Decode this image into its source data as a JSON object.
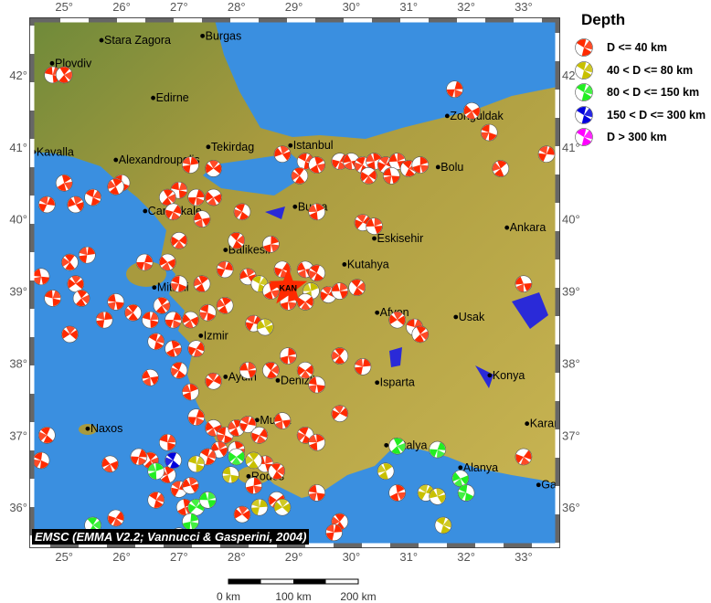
{
  "legend": {
    "title": "Depth",
    "items": [
      {
        "label": "D <= 40 km",
        "color": "#ff2a00"
      },
      {
        "label": "40 < D <= 80 km",
        "color": "#c8c000"
      },
      {
        "label": "80 < D <= 150 km",
        "color": "#22ee22"
      },
      {
        "label": "150 < D <= 300 km",
        "color": "#0000dd"
      },
      {
        "label": "D > 300 km",
        "color": "#ff00ff"
      }
    ]
  },
  "credit": "EMSC (EMMA V2.2; Vannucci & Gasperini, 2004)",
  "scale_bar": {
    "labels": [
      "0 km",
      "100 km",
      "200 km"
    ]
  },
  "axes": {
    "lon_ticks": [
      "25°",
      "26°",
      "27°",
      "28°",
      "29°",
      "30°",
      "31°",
      "32°",
      "33°"
    ],
    "lat_ticks": [
      "36°",
      "37°",
      "38°",
      "39°",
      "40°",
      "41°",
      "42°"
    ],
    "lon_range": [
      24.44,
      33.59
    ],
    "lat_range": [
      35.47,
      42.76
    ]
  },
  "colors": {
    "sea": "#3a8fe0",
    "land": "#b8a640",
    "lake": "#2a2ad8",
    "epicenter": "#ff2a00"
  },
  "epicenter": {
    "label": "KAN",
    "lon": 28.9,
    "lat": 39.05
  },
  "cities": [
    {
      "name": "Stara Zagora",
      "lon": 25.65,
      "lat": 42.48
    },
    {
      "name": "Burgas",
      "lon": 27.41,
      "lat": 42.54
    },
    {
      "name": "Plovdiv",
      "lon": 24.79,
      "lat": 42.16
    },
    {
      "name": "Edirne",
      "lon": 26.55,
      "lat": 41.68
    },
    {
      "name": "Kavalla",
      "lon": 24.47,
      "lat": 40.93
    },
    {
      "name": "Alexandroupolis",
      "lon": 25.9,
      "lat": 40.82
    },
    {
      "name": "Tekirdag",
      "lon": 27.51,
      "lat": 41.0
    },
    {
      "name": "Istanbul",
      "lon": 28.94,
      "lat": 41.02
    },
    {
      "name": "Zonguldak",
      "lon": 31.67,
      "lat": 41.43
    },
    {
      "name": "Bolu",
      "lon": 31.51,
      "lat": 40.72
    },
    {
      "name": "Canakkale",
      "lon": 26.41,
      "lat": 40.11
    },
    {
      "name": "Bursa",
      "lon": 29.02,
      "lat": 40.17
    },
    {
      "name": "Ankara",
      "lon": 32.71,
      "lat": 39.88
    },
    {
      "name": "Eskisehir",
      "lon": 30.4,
      "lat": 39.73
    },
    {
      "name": "Balikesir",
      "lon": 27.81,
      "lat": 39.57
    },
    {
      "name": "Kutahya",
      "lon": 29.88,
      "lat": 39.37
    },
    {
      "name": "Mitilini",
      "lon": 26.57,
      "lat": 39.05
    },
    {
      "name": "Afyon",
      "lon": 30.45,
      "lat": 38.7
    },
    {
      "name": "Usak",
      "lon": 31.82,
      "lat": 38.64
    },
    {
      "name": "Izmir",
      "lon": 27.38,
      "lat": 38.38
    },
    {
      "name": "Aydin",
      "lon": 27.81,
      "lat": 37.81
    },
    {
      "name": "Denizli",
      "lon": 28.72,
      "lat": 37.76
    },
    {
      "name": "Isparta",
      "lon": 30.45,
      "lat": 37.73
    },
    {
      "name": "Konya",
      "lon": 32.41,
      "lat": 37.83
    },
    {
      "name": "Naxos",
      "lon": 25.41,
      "lat": 37.09
    },
    {
      "name": "Mugla",
      "lon": 28.36,
      "lat": 37.21
    },
    {
      "name": "Karaman",
      "lon": 33.06,
      "lat": 37.16
    },
    {
      "name": "Antalya",
      "lon": 30.61,
      "lat": 36.86
    },
    {
      "name": "Alanya",
      "lon": 31.9,
      "lat": 36.55
    },
    {
      "name": "Gazipasa",
      "lon": 33.26,
      "lat": 36.31
    },
    {
      "name": "Rodos",
      "lon": 28.21,
      "lat": 36.43
    }
  ],
  "mechanisms": [
    [
      24.8,
      42.0,
      0
    ],
    [
      25.0,
      42.0,
      0
    ],
    [
      31.8,
      41.8,
      0
    ],
    [
      32.1,
      41.5,
      0
    ],
    [
      32.4,
      41.2,
      0
    ],
    [
      32.6,
      40.7,
      0
    ],
    [
      33.4,
      40.9,
      0
    ],
    [
      28.8,
      40.9,
      0
    ],
    [
      29.2,
      40.8,
      0
    ],
    [
      29.4,
      40.75,
      0
    ],
    [
      29.8,
      40.8,
      0
    ],
    [
      30.0,
      40.8,
      0
    ],
    [
      30.2,
      40.75,
      0
    ],
    [
      30.4,
      40.8,
      0
    ],
    [
      30.6,
      40.75,
      0
    ],
    [
      30.8,
      40.8,
      0
    ],
    [
      31.0,
      40.7,
      0
    ],
    [
      31.2,
      40.75,
      0
    ],
    [
      30.3,
      40.6,
      0
    ],
    [
      30.7,
      40.6,
      0
    ],
    [
      29.1,
      40.6,
      0
    ],
    [
      27.2,
      40.75,
      0
    ],
    [
      27.6,
      40.7,
      0
    ],
    [
      27.0,
      40.4,
      0
    ],
    [
      26.8,
      40.3,
      0
    ],
    [
      27.3,
      40.3,
      0
    ],
    [
      27.6,
      40.3,
      0
    ],
    [
      26.0,
      40.5,
      0
    ],
    [
      25.9,
      40.45,
      0
    ],
    [
      24.7,
      40.2,
      0
    ],
    [
      25.2,
      40.2,
      0
    ],
    [
      25.5,
      40.3,
      0
    ],
    [
      25.0,
      40.5,
      0
    ],
    [
      26.9,
      40.1,
      0
    ],
    [
      27.4,
      40.0,
      0
    ],
    [
      28.1,
      40.1,
      0
    ],
    [
      29.4,
      40.1,
      0
    ],
    [
      30.2,
      39.95,
      0
    ],
    [
      30.4,
      39.9,
      0
    ],
    [
      28.0,
      39.7,
      0
    ],
    [
      28.6,
      39.65,
      0
    ],
    [
      27.0,
      39.7,
      0
    ],
    [
      24.6,
      39.2,
      0
    ],
    [
      25.1,
      39.4,
      0
    ],
    [
      25.4,
      39.5,
      0
    ],
    [
      25.2,
      39.1,
      0
    ],
    [
      24.8,
      38.9,
      0
    ],
    [
      25.3,
      38.9,
      0
    ],
    [
      26.4,
      39.4,
      0
    ],
    [
      26.8,
      39.4,
      0
    ],
    [
      27.0,
      39.1,
      0
    ],
    [
      27.4,
      39.1,
      0
    ],
    [
      27.8,
      39.3,
      0
    ],
    [
      28.2,
      39.2,
      0
    ],
    [
      28.4,
      39.1,
      1
    ],
    [
      28.6,
      39.0,
      0
    ],
    [
      28.8,
      39.3,
      0
    ],
    [
      29.2,
      39.3,
      0
    ],
    [
      29.4,
      39.25,
      0
    ],
    [
      29.3,
      39.0,
      1
    ],
    [
      29.6,
      38.95,
      0
    ],
    [
      29.8,
      39.0,
      0
    ],
    [
      30.1,
      39.05,
      0
    ],
    [
      28.9,
      38.85,
      0
    ],
    [
      29.2,
      38.85,
      0
    ],
    [
      25.9,
      38.85,
      0
    ],
    [
      26.2,
      38.7,
      0
    ],
    [
      25.7,
      38.6,
      0
    ],
    [
      25.1,
      38.4,
      0
    ],
    [
      26.5,
      38.6,
      0
    ],
    [
      26.7,
      38.8,
      0
    ],
    [
      26.9,
      38.6,
      0
    ],
    [
      27.2,
      38.6,
      0
    ],
    [
      27.5,
      38.7,
      0
    ],
    [
      27.8,
      38.8,
      0
    ],
    [
      28.3,
      38.55,
      0
    ],
    [
      28.5,
      38.5,
      1
    ],
    [
      26.6,
      38.3,
      0
    ],
    [
      26.9,
      38.2,
      0
    ],
    [
      27.3,
      38.2,
      0
    ],
    [
      26.5,
      37.8,
      0
    ],
    [
      27.0,
      37.9,
      0
    ],
    [
      27.2,
      37.6,
      0
    ],
    [
      27.6,
      37.75,
      0
    ],
    [
      28.2,
      37.9,
      0
    ],
    [
      28.6,
      37.9,
      0
    ],
    [
      28.9,
      38.1,
      0
    ],
    [
      29.2,
      37.9,
      0
    ],
    [
      29.4,
      37.7,
      0
    ],
    [
      29.8,
      38.1,
      0
    ],
    [
      30.2,
      37.95,
      0
    ],
    [
      30.8,
      38.6,
      0
    ],
    [
      31.1,
      38.5,
      0
    ],
    [
      31.2,
      38.4,
      0
    ],
    [
      27.3,
      37.25,
      0
    ],
    [
      27.6,
      37.1,
      0
    ],
    [
      27.8,
      37.0,
      0
    ],
    [
      28.0,
      37.1,
      0
    ],
    [
      28.2,
      37.15,
      0
    ],
    [
      27.7,
      36.8,
      0
    ],
    [
      27.5,
      36.7,
      0
    ],
    [
      28.0,
      36.8,
      0
    ],
    [
      28.4,
      37.0,
      0
    ],
    [
      28.8,
      37.2,
      0
    ],
    [
      29.2,
      37.0,
      0
    ],
    [
      29.4,
      36.9,
      0
    ],
    [
      29.8,
      37.3,
      0
    ],
    [
      28.5,
      36.6,
      0
    ],
    [
      28.7,
      36.5,
      0
    ],
    [
      28.3,
      36.3,
      0
    ],
    [
      28.7,
      36.1,
      0
    ],
    [
      29.4,
      36.2,
      0
    ],
    [
      29.8,
      35.8,
      0
    ],
    [
      29.7,
      35.65,
      0
    ],
    [
      28.1,
      35.9,
      0
    ],
    [
      26.8,
      36.9,
      0
    ],
    [
      26.5,
      36.65,
      0
    ],
    [
      26.3,
      36.7,
      0
    ],
    [
      25.8,
      36.6,
      0
    ],
    [
      24.6,
      36.65,
      0
    ],
    [
      26.8,
      36.45,
      0
    ],
    [
      27.0,
      36.25,
      0
    ],
    [
      27.2,
      36.3,
      0
    ],
    [
      26.6,
      36.1,
      0
    ],
    [
      27.1,
      36.0,
      0
    ],
    [
      25.9,
      35.85,
      0
    ],
    [
      27.0,
      35.6,
      0
    ],
    [
      26.9,
      36.65,
      3
    ],
    [
      26.6,
      36.5,
      2
    ],
    [
      27.3,
      36.0,
      2
    ],
    [
      27.5,
      36.1,
      2
    ],
    [
      25.5,
      35.75,
      2
    ],
    [
      27.2,
      35.8,
      2
    ],
    [
      28.0,
      36.7,
      2
    ],
    [
      27.9,
      36.45,
      1
    ],
    [
      28.3,
      36.65,
      1
    ],
    [
      28.4,
      36.0,
      1
    ],
    [
      28.8,
      36.0,
      1
    ],
    [
      27.3,
      36.6,
      1
    ],
    [
      30.8,
      36.85,
      2
    ],
    [
      31.5,
      36.8,
      2
    ],
    [
      31.9,
      36.4,
      2
    ],
    [
      32.0,
      36.2,
      2
    ],
    [
      30.6,
      36.5,
      1
    ],
    [
      31.3,
      36.2,
      1
    ],
    [
      31.5,
      36.15,
      1
    ],
    [
      31.6,
      35.75,
      1
    ],
    [
      30.8,
      36.2,
      0
    ],
    [
      33.0,
      36.7,
      0
    ],
    [
      33.0,
      39.1,
      0
    ],
    [
      24.7,
      37.0,
      0
    ]
  ]
}
